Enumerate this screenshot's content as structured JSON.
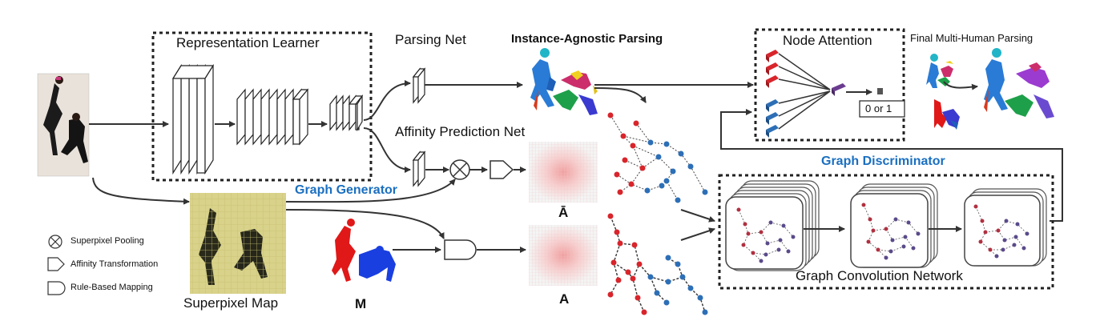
{
  "labels": {
    "representation_learner": "Representation Learner",
    "parsing_net": "Parsing Net",
    "instance_agnostic_parsing": "Instance-Agnostic Parsing",
    "affinity_prediction_net": "Affinity Prediction Net",
    "graph_generator": "Graph Generator",
    "superpixel_map": "Superpixel Map",
    "m": "M",
    "a_bar": "Ā",
    "a": "A",
    "node_attention": "Node Attention",
    "final_multi_human_parsing": "Final Multi-Human Parsing",
    "zero_or_one": "0 or 1",
    "graph_discriminator": "Graph Discriminator",
    "graph_convolution_network": "Graph Convolution Network"
  },
  "legend": [
    {
      "icon": "superpixel-pooling-icon",
      "label": "Superpixel Pooling"
    },
    {
      "icon": "affinity-transformation-icon",
      "label": "Affinity Transformation"
    },
    {
      "icon": "rule-based-mapping-icon",
      "label": "Rule-Based Mapping"
    }
  ],
  "colors": {
    "accent_blue": "#1a6fc0",
    "node_red": "#d8252b",
    "node_blue": "#2d6fb6",
    "attention_purple": "#6a3c8f",
    "dashed_border": "#222222"
  }
}
